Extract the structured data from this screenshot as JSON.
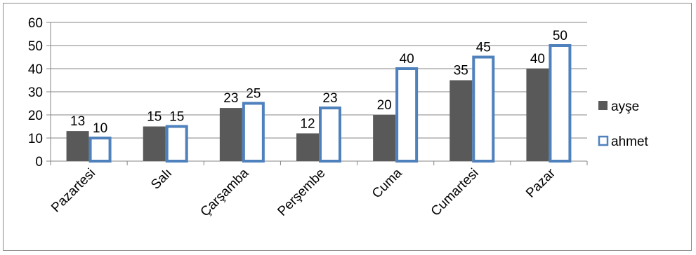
{
  "chart_data": {
    "type": "bar",
    "categories": [
      "Pazartesi",
      "Salı",
      "Çarşamba",
      "Perşembe",
      "Cuma",
      "Cumartesi",
      "Pazar"
    ],
    "series": [
      {
        "name": "ayşe",
        "values": [
          13,
          15,
          23,
          12,
          20,
          35,
          40
        ],
        "color": "#595959",
        "style": "filled"
      },
      {
        "name": "ahmet",
        "values": [
          10,
          15,
          25,
          23,
          40,
          45,
          50
        ],
        "color": "#4f81bd",
        "fill": "#ffffff",
        "style": "outlined"
      }
    ],
    "ylim": [
      0,
      60
    ],
    "yticks": [
      0,
      10,
      20,
      30,
      40,
      50,
      60
    ],
    "grid": true,
    "legend": "right",
    "title": "",
    "xlabel": "",
    "ylabel": ""
  }
}
